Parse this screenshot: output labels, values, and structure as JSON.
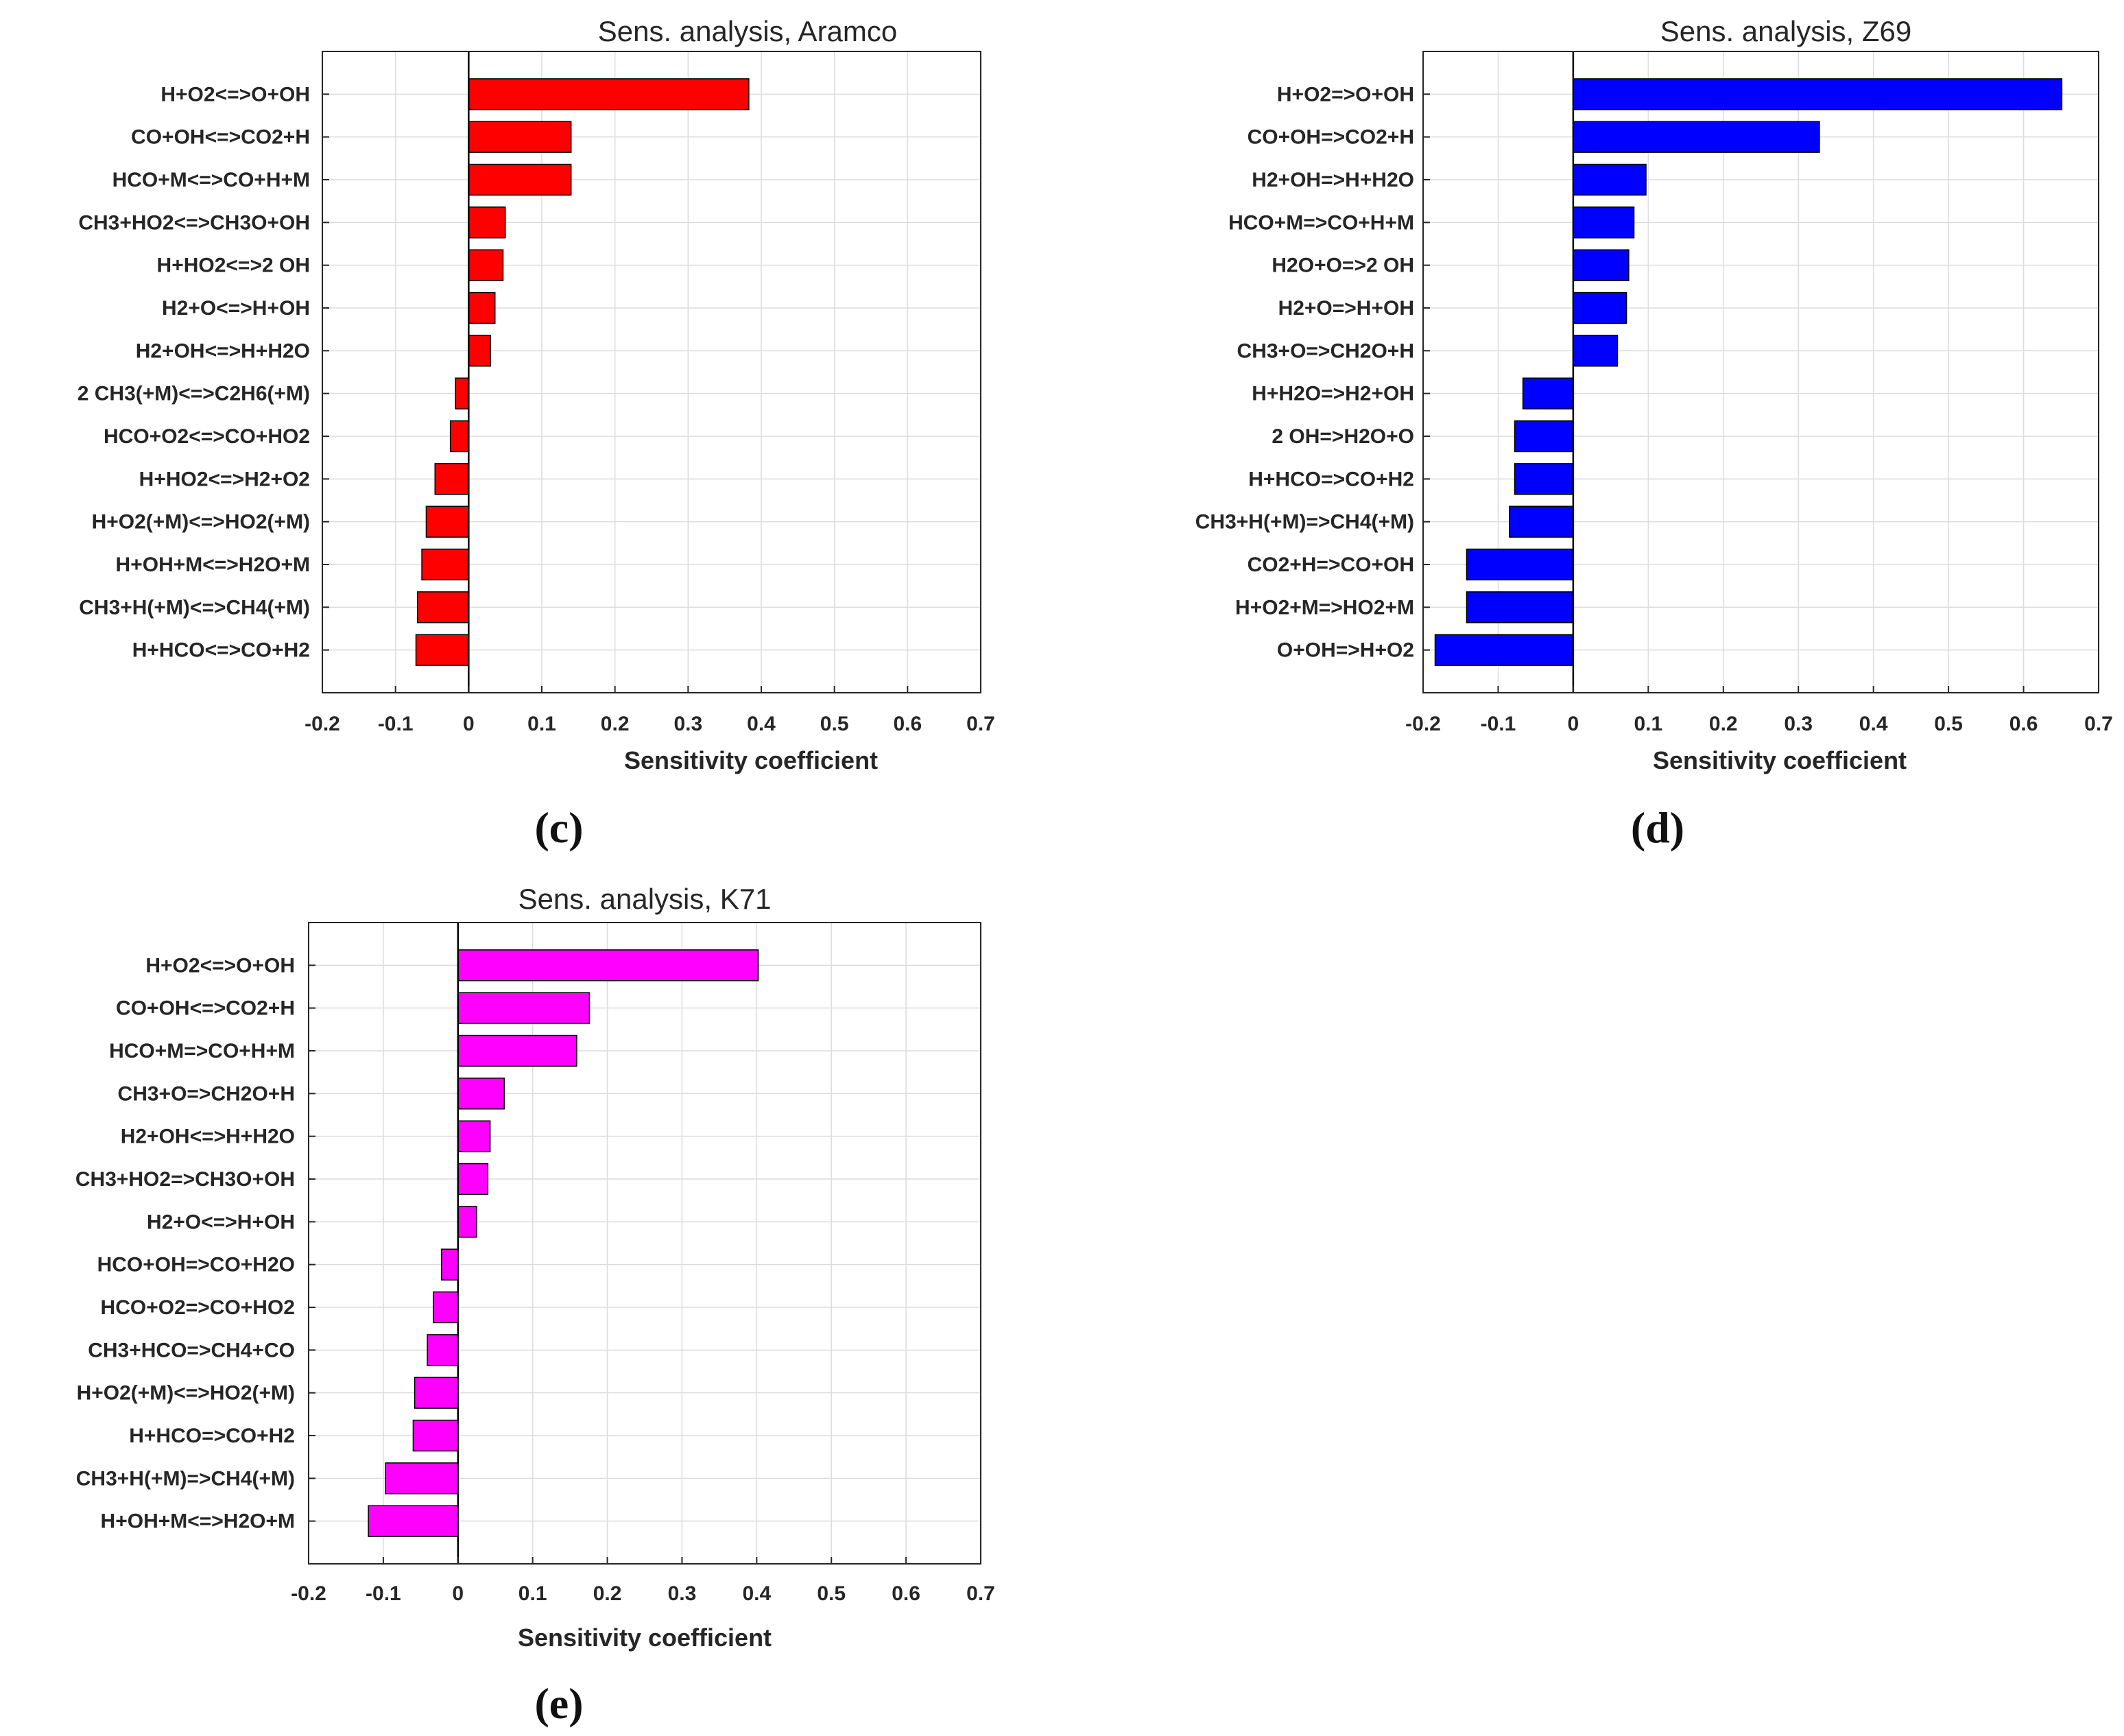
{
  "chart_data": [
    {
      "type": "bar",
      "orientation": "horizontal",
      "panel_label": "(c)",
      "title": "Sens. analysis, Aramco",
      "xlabel": "Sensitivity coefficient",
      "ylabel": "",
      "xlim": [
        -0.2,
        0.7
      ],
      "xticks": [
        "-0.2",
        "-0.1",
        "0",
        "0.1",
        "0.2",
        "0.3",
        "0.4",
        "0.5",
        "0.6",
        "0.7"
      ],
      "grid": true,
      "color": "#ff0000",
      "categories": [
        "H+O2<=>O+OH",
        "CO+OH<=>CO2+H",
        "HCO+M<=>CO+H+M",
        "CH3+HO2<=>CH3O+OH",
        "H+HO2<=>2 OH",
        "H2+O<=>H+OH",
        "H2+OH<=>H+H2O",
        "2 CH3(+M)<=>C2H6(+M)",
        "HCO+O2<=>CO+HO2",
        "H+HO2<=>H2+O2",
        "H+O2(+M)<=>HO2(+M)",
        "H+OH+M<=>H2O+M",
        "CH3+H(+M)<=>CH4(+M)",
        "H+HCO<=>CO+H2"
      ],
      "values": [
        0.383,
        0.14,
        0.14,
        0.05,
        0.047,
        0.036,
        0.03,
        -0.018,
        -0.025,
        -0.046,
        -0.058,
        -0.064,
        -0.07,
        -0.072
      ]
    },
    {
      "type": "bar",
      "orientation": "horizontal",
      "panel_label": "(d)",
      "title": "Sens. analysis, Z69",
      "xlabel": "Sensitivity coefficient",
      "ylabel": "",
      "xlim": [
        -0.2,
        0.7
      ],
      "xticks": [
        "-0.2",
        "-0.1",
        "0",
        "0.1",
        "0.2",
        "0.3",
        "0.4",
        "0.5",
        "0.6",
        "0.7"
      ],
      "grid": true,
      "color": "#0000ff",
      "categories": [
        "H+O2=>O+OH",
        "CO+OH=>CO2+H",
        "H2+OH=>H+H2O",
        "HCO+M=>CO+H+M",
        "H2O+O=>2 OH",
        "H2+O=>H+OH",
        "CH3+O=>CH2O+H",
        "H+H2O=>H2+OH",
        "2 OH=>H2O+O",
        "H+HCO=>CO+H2",
        "CH3+H(+M)=>CH4(+M)",
        "CO2+H=>CO+OH",
        "H+O2+M=>HO2+M",
        "O+OH=>H+O2"
      ],
      "values": [
        0.651,
        0.328,
        0.097,
        0.081,
        0.074,
        0.071,
        0.059,
        -0.067,
        -0.078,
        -0.078,
        -0.085,
        -0.142,
        -0.142,
        -0.184
      ]
    },
    {
      "type": "bar",
      "orientation": "horizontal",
      "panel_label": "(e)",
      "title": "Sens. analysis, K71",
      "xlabel": "Sensitivity coefficient",
      "ylabel": "",
      "xlim": [
        -0.2,
        0.7
      ],
      "xticks": [
        "-0.2",
        "-0.1",
        "0",
        "0.1",
        "0.2",
        "0.3",
        "0.4",
        "0.5",
        "0.6",
        "0.7"
      ],
      "grid": true,
      "color": "#ff00ff",
      "categories": [
        "H+O2<=>O+OH",
        "CO+OH<=>CO2+H",
        "HCO+M=>CO+H+M",
        "CH3+O=>CH2O+H",
        "H2+OH<=>H+H2O",
        "CH3+HO2=>CH3O+OH",
        "H2+O<=>H+OH",
        "HCO+OH=>CO+H2O",
        "HCO+O2=>CO+HO2",
        "CH3+HCO=>CH4+CO",
        "H+O2(+M)<=>HO2(+M)",
        "H+HCO=>CO+H2",
        "CH3+H(+M)=>CH4(+M)",
        "H+OH+M<=>H2O+M"
      ],
      "values": [
        0.402,
        0.176,
        0.159,
        0.062,
        0.043,
        0.04,
        0.025,
        -0.022,
        -0.033,
        -0.041,
        -0.058,
        -0.06,
        -0.097,
        -0.12
      ]
    }
  ]
}
